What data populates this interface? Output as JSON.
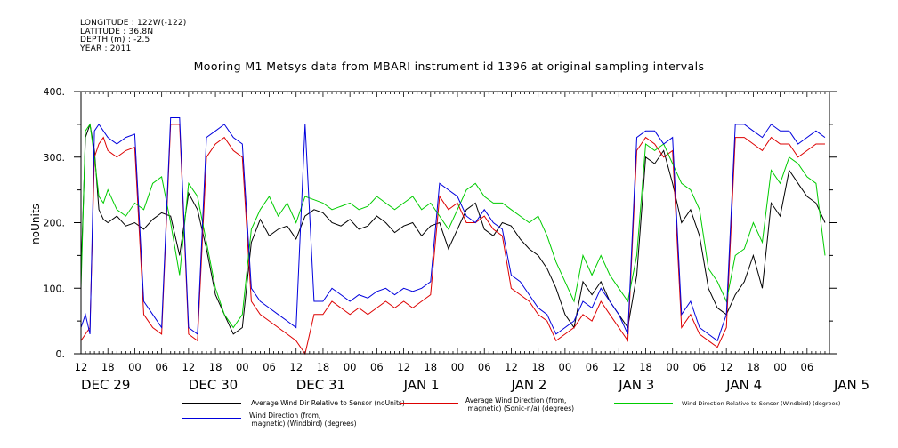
{
  "header": {
    "meta_lines": [
      "LONGITUDE : 122W(-122)",
      "LATITUDE : 36.8N",
      "DEPTH (m) : -2.5",
      "YEAR : 2011"
    ],
    "title": "Mooring M1 Metsys data from MBARI instrument id 1396 at original sampling intervals"
  },
  "colors": {
    "black": "#000000",
    "red": "#dd0000",
    "green": "#00cc00",
    "blue": "#0000dd"
  },
  "chart_data": {
    "type": "line",
    "title": "Mooring M1 Metsys data from MBARI instrument id 1396 at original sampling intervals",
    "ylabel": "noUnits",
    "xlabel": "",
    "ylim": [
      0,
      400
    ],
    "xlim_hours": [
      0,
      167
    ],
    "y_ticks": [
      0,
      100,
      200,
      300,
      400
    ],
    "y_tick_labels": [
      "0.",
      "100.",
      "200.",
      "300.",
      "400."
    ],
    "x_hour_tick_labels": [
      "12",
      "18",
      "00",
      "06",
      "12",
      "18",
      "00",
      "06",
      "12",
      "18",
      "00",
      "06",
      "12",
      "18",
      "00",
      "06",
      "12",
      "18",
      "00",
      "06",
      "12",
      "18",
      "00",
      "06",
      "12",
      "18",
      "00",
      "06"
    ],
    "x_day_labels": [
      "DEC 29",
      "DEC 30",
      "DEC 31",
      "JAN  1",
      "JAN  2",
      "JAN  3",
      "JAN  4",
      "JAN  5"
    ],
    "grid": false,
    "legend_position": "bottom",
    "series": [
      {
        "name": "Average Wind Dir Relative to Sensor (noUnits)",
        "color": "#000000",
        "x": [
          0,
          1,
          2,
          3,
          4,
          5,
          6,
          8,
          10,
          12,
          14,
          16,
          18,
          20,
          22,
          24,
          26,
          28,
          30,
          32,
          34,
          36,
          38,
          40,
          42,
          44,
          46,
          48,
          50,
          52,
          54,
          56,
          58,
          60,
          62,
          64,
          66,
          68,
          70,
          72,
          74,
          76,
          78,
          80,
          82,
          84,
          86,
          88,
          90,
          92,
          94,
          96,
          98,
          100,
          102,
          104,
          106,
          108,
          110,
          112,
          114,
          116,
          118,
          120,
          122,
          124,
          126,
          128,
          130,
          132,
          134,
          136,
          138,
          140,
          142,
          144,
          146,
          148,
          150,
          152,
          154,
          156,
          158,
          160,
          162,
          164,
          166
        ],
        "y": [
          120,
          330,
          350,
          310,
          220,
          205,
          200,
          210,
          195,
          200,
          190,
          205,
          215,
          210,
          150,
          245,
          220,
          160,
          90,
          60,
          30,
          40,
          170,
          205,
          180,
          190,
          195,
          175,
          210,
          220,
          215,
          200,
          195,
          205,
          190,
          195,
          210,
          200,
          185,
          195,
          200,
          180,
          195,
          200,
          160,
          190,
          220,
          230,
          190,
          180,
          200,
          195,
          175,
          160,
          150,
          130,
          100,
          60,
          40,
          110,
          90,
          110,
          80,
          60,
          40,
          120,
          300,
          290,
          310,
          260,
          200,
          220,
          180,
          100,
          70,
          60,
          90,
          110,
          150,
          100,
          230,
          210,
          280,
          260,
          240,
          230,
          200
        ]
      },
      {
        "name": "Average Wind Direction (from, magnetic) (Sonic-n/a) (degrees)",
        "color": "#dd0000",
        "x": [
          0,
          1,
          2,
          3,
          4,
          5,
          6,
          8,
          10,
          12,
          14,
          16,
          18,
          20,
          22,
          24,
          26,
          28,
          30,
          32,
          34,
          36,
          38,
          40,
          42,
          44,
          46,
          48,
          50,
          52,
          54,
          56,
          58,
          60,
          62,
          64,
          66,
          68,
          70,
          72,
          74,
          76,
          78,
          80,
          82,
          84,
          86,
          88,
          90,
          92,
          94,
          96,
          98,
          100,
          102,
          104,
          106,
          108,
          110,
          112,
          114,
          116,
          118,
          120,
          122,
          124,
          126,
          128,
          130,
          132,
          134,
          136,
          138,
          140,
          142,
          144,
          146,
          148,
          150,
          152,
          154,
          156,
          158,
          160,
          162,
          164,
          166
        ],
        "y": [
          20,
          30,
          40,
          300,
          320,
          330,
          310,
          300,
          310,
          315,
          60,
          40,
          30,
          350,
          350,
          30,
          20,
          300,
          320,
          330,
          310,
          300,
          80,
          60,
          50,
          40,
          30,
          20,
          0,
          60,
          60,
          80,
          70,
          60,
          70,
          60,
          70,
          80,
          70,
          80,
          70,
          80,
          90,
          240,
          220,
          230,
          200,
          200,
          210,
          190,
          180,
          100,
          90,
          80,
          60,
          50,
          20,
          30,
          40,
          60,
          50,
          80,
          60,
          40,
          20,
          310,
          330,
          320,
          300,
          310,
          40,
          60,
          30,
          20,
          10,
          40,
          330,
          330,
          320,
          310,
          330,
          320,
          320,
          300,
          310,
          320,
          320
        ]
      },
      {
        "name": "Wind Direction Relative to Sensor (Windbird) (degrees)",
        "color": "#00cc00",
        "x": [
          0,
          1,
          2,
          3,
          4,
          5,
          6,
          8,
          10,
          12,
          14,
          16,
          18,
          20,
          22,
          24,
          26,
          28,
          30,
          32,
          34,
          36,
          38,
          40,
          42,
          44,
          46,
          48,
          50,
          52,
          54,
          56,
          58,
          60,
          62,
          64,
          66,
          68,
          70,
          72,
          74,
          76,
          78,
          80,
          82,
          84,
          86,
          88,
          90,
          92,
          94,
          96,
          98,
          100,
          102,
          104,
          106,
          108,
          110,
          112,
          114,
          116,
          118,
          120,
          122,
          124,
          126,
          128,
          130,
          132,
          134,
          136,
          138,
          140,
          142,
          144,
          146,
          148,
          150,
          152,
          154,
          156,
          158,
          160,
          162,
          164,
          166
        ],
        "y": [
          100,
          340,
          350,
          300,
          240,
          230,
          250,
          220,
          210,
          230,
          220,
          260,
          270,
          200,
          120,
          260,
          240,
          170,
          100,
          60,
          40,
          60,
          190,
          220,
          240,
          210,
          230,
          200,
          240,
          235,
          230,
          220,
          225,
          230,
          220,
          225,
          240,
          230,
          220,
          230,
          240,
          220,
          230,
          210,
          190,
          220,
          250,
          260,
          240,
          230,
          230,
          220,
          210,
          200,
          210,
          180,
          140,
          110,
          80,
          150,
          120,
          150,
          120,
          100,
          80,
          150,
          320,
          310,
          320,
          290,
          260,
          250,
          220,
          130,
          110,
          80,
          150,
          160,
          200,
          170,
          280,
          260,
          300,
          290,
          270,
          260,
          150
        ]
      },
      {
        "name": "Wind Direction (from, magnetic) (Windbird) (degrees)",
        "color": "#0000dd",
        "x": [
          0,
          1,
          2,
          3,
          4,
          5,
          6,
          8,
          10,
          12,
          14,
          16,
          18,
          20,
          22,
          24,
          26,
          28,
          30,
          32,
          34,
          36,
          38,
          40,
          42,
          44,
          46,
          48,
          50,
          52,
          54,
          56,
          58,
          60,
          62,
          64,
          66,
          68,
          70,
          72,
          74,
          76,
          78,
          80,
          82,
          84,
          86,
          88,
          90,
          92,
          94,
          96,
          98,
          100,
          102,
          104,
          106,
          108,
          110,
          112,
          114,
          116,
          118,
          120,
          122,
          124,
          126,
          128,
          130,
          132,
          134,
          136,
          138,
          140,
          142,
          144,
          146,
          148,
          150,
          152,
          154,
          156,
          158,
          160,
          162,
          164,
          166
        ],
        "y": [
          40,
          60,
          30,
          340,
          350,
          340,
          330,
          320,
          330,
          335,
          80,
          60,
          40,
          360,
          360,
          40,
          30,
          330,
          340,
          350,
          330,
          320,
          100,
          80,
          70,
          60,
          50,
          40,
          350,
          80,
          80,
          100,
          90,
          80,
          90,
          85,
          95,
          100,
          90,
          100,
          95,
          100,
          110,
          260,
          250,
          240,
          210,
          200,
          220,
          200,
          190,
          120,
          110,
          90,
          70,
          60,
          30,
          40,
          50,
          80,
          70,
          100,
          80,
          60,
          30,
          330,
          340,
          340,
          320,
          330,
          60,
          80,
          40,
          30,
          20,
          60,
          350,
          350,
          340,
          330,
          350,
          340,
          340,
          320,
          330,
          340,
          330
        ]
      }
    ]
  },
  "legend": {
    "black": "Average Wind Dir Relative to Sensor (noUnits)",
    "red": "Average Wind Direction (from,\n magnetic) (Sonic-n/a) (degrees)",
    "green": "Wind Direction Relative to Sensor (Windbird) (degrees)",
    "blue": "Wind Direction (from,\n magnetic) (Windbird) (degrees)"
  }
}
